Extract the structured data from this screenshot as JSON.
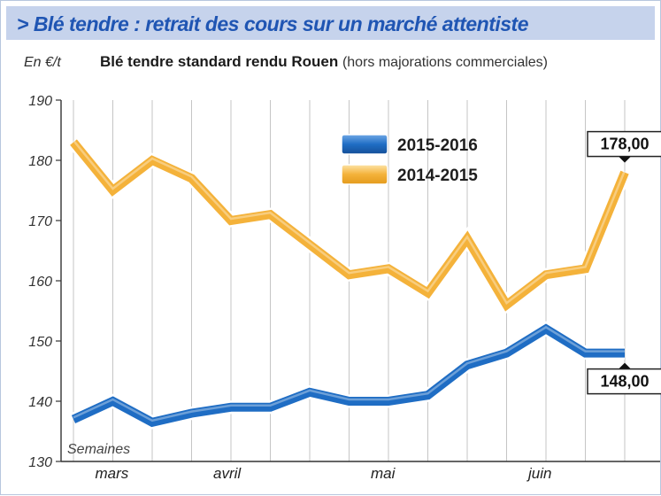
{
  "header": {
    "banner": "> Blé tendre : retrait des cours sur un marché attentiste",
    "unit": "En €/t",
    "subtitle_main": "Blé tendre standard rendu Rouen",
    "subtitle_note": "(hors majorations commerciales)"
  },
  "chart_data": {
    "type": "line",
    "title": "Blé tendre standard rendu Rouen",
    "subtitle": "(hors majorations commerciales)",
    "ylabel": "En €/t",
    "xlabel": "Semaines",
    "ylim": [
      130,
      190
    ],
    "yticks": [
      130,
      140,
      150,
      160,
      170,
      180,
      190
    ],
    "grid": "vertical",
    "legend_position": "top-right",
    "month_labels": [
      "mars",
      "avril",
      "mai",
      "juin"
    ],
    "month_at_week": [
      1,
      4,
      8,
      12
    ],
    "series": [
      {
        "name": "2015-2016",
        "color": "#1f6dc4",
        "values": [
          137,
          140,
          136.5,
          138,
          139,
          139,
          141.5,
          140,
          140,
          141,
          146,
          148,
          152,
          148,
          148
        ],
        "end_label": "148,00"
      },
      {
        "name": "2014-2015",
        "color": "#f4b23a",
        "values": [
          183,
          175,
          180,
          177,
          170,
          171,
          166,
          161,
          162,
          158,
          167,
          156,
          161,
          162,
          178
        ],
        "end_label": "178,00"
      }
    ]
  }
}
